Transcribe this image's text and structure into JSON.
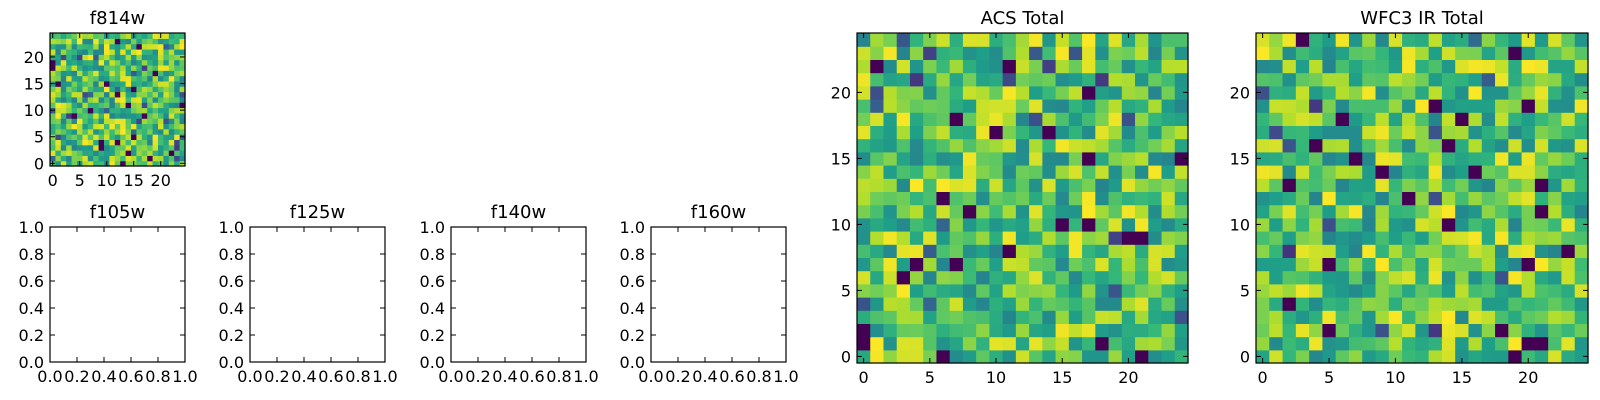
{
  "chart_data": [
    {
      "id": "f814w",
      "type": "heatmap",
      "title": "f814w",
      "grid_size": [
        25,
        25
      ],
      "xlim": [
        -0.5,
        24.5
      ],
      "ylim": [
        -0.5,
        24.5
      ],
      "xticks": [
        0,
        5,
        10,
        15,
        20
      ],
      "yticks": [
        0,
        5,
        10,
        15,
        20
      ],
      "xticklabels": [
        "0",
        "5",
        "10",
        "15",
        "20"
      ],
      "yticklabels": [
        "0",
        "5",
        "10",
        "15",
        "20"
      ],
      "colormap": "viridis",
      "value_range": [
        0,
        1
      ],
      "seed": 814
    },
    {
      "id": "f105w",
      "type": "empty",
      "title": "f105w",
      "xlim": [
        0,
        1
      ],
      "ylim": [
        0,
        1
      ],
      "xticks": [
        0,
        0.2,
        0.4,
        0.6,
        0.8,
        1.0
      ],
      "yticks": [
        0,
        0.2,
        0.4,
        0.6,
        0.8,
        1.0
      ],
      "xticklabels": [
        "0.0",
        "0.2",
        "0.4",
        "0.6",
        "0.8",
        "1.0"
      ],
      "yticklabels": [
        "0.0",
        "0.2",
        "0.4",
        "0.6",
        "0.8",
        "1.0"
      ]
    },
    {
      "id": "f125w",
      "type": "empty",
      "title": "f125w",
      "xlim": [
        0,
        1
      ],
      "ylim": [
        0,
        1
      ],
      "xticks": [
        0,
        0.2,
        0.4,
        0.6,
        0.8,
        1.0
      ],
      "yticks": [
        0,
        0.2,
        0.4,
        0.6,
        0.8,
        1.0
      ],
      "xticklabels": [
        "0.0",
        "0.2",
        "0.4",
        "0.6",
        "0.8",
        "1.0"
      ],
      "yticklabels": [
        "0.0",
        "0.2",
        "0.4",
        "0.6",
        "0.8",
        "1.0"
      ]
    },
    {
      "id": "f140w",
      "type": "empty",
      "title": "f140w",
      "xlim": [
        0,
        1
      ],
      "ylim": [
        0,
        1
      ],
      "xticks": [
        0,
        0.2,
        0.4,
        0.6,
        0.8,
        1.0
      ],
      "yticks": [
        0,
        0.2,
        0.4,
        0.6,
        0.8,
        1.0
      ],
      "xticklabels": [
        "0.0",
        "0.2",
        "0.4",
        "0.6",
        "0.8",
        "1.0"
      ],
      "yticklabels": [
        "0.0",
        "0.2",
        "0.4",
        "0.6",
        "0.8",
        "1.0"
      ]
    },
    {
      "id": "f160w",
      "type": "empty",
      "title": "f160w",
      "xlim": [
        0,
        1
      ],
      "ylim": [
        0,
        1
      ],
      "xticks": [
        0,
        0.2,
        0.4,
        0.6,
        0.8,
        1.0
      ],
      "yticks": [
        0,
        0.2,
        0.4,
        0.6,
        0.8,
        1.0
      ],
      "xticklabels": [
        "0.0",
        "0.2",
        "0.4",
        "0.6",
        "0.8",
        "1.0"
      ],
      "yticklabels": [
        "0.0",
        "0.2",
        "0.4",
        "0.6",
        "0.8",
        "1.0"
      ]
    },
    {
      "id": "acs_total",
      "type": "heatmap",
      "title": "ACS Total",
      "grid_size": [
        25,
        25
      ],
      "xlim": [
        -0.5,
        24.5
      ],
      "ylim": [
        -0.5,
        24.5
      ],
      "xticks": [
        0,
        5,
        10,
        15,
        20
      ],
      "yticks": [
        0,
        5,
        10,
        15,
        20
      ],
      "xticklabels": [
        "0",
        "5",
        "10",
        "15",
        "20"
      ],
      "yticklabels": [
        "0",
        "5",
        "10",
        "15",
        "20"
      ],
      "colormap": "viridis",
      "value_range": [
        0,
        1
      ],
      "seed": 101
    },
    {
      "id": "wfc3_ir_total",
      "type": "heatmap",
      "title": "WFC3 IR Total",
      "grid_size": [
        25,
        25
      ],
      "xlim": [
        -0.5,
        24.5
      ],
      "ylim": [
        -0.5,
        24.5
      ],
      "xticks": [
        0,
        5,
        10,
        15,
        20
      ],
      "yticks": [
        0,
        5,
        10,
        15,
        20
      ],
      "xticklabels": [
        "0",
        "5",
        "10",
        "15",
        "20"
      ],
      "yticklabels": [
        "0",
        "5",
        "10",
        "15",
        "20"
      ],
      "colormap": "viridis",
      "value_range": [
        0,
        1
      ],
      "seed": 3
    }
  ]
}
